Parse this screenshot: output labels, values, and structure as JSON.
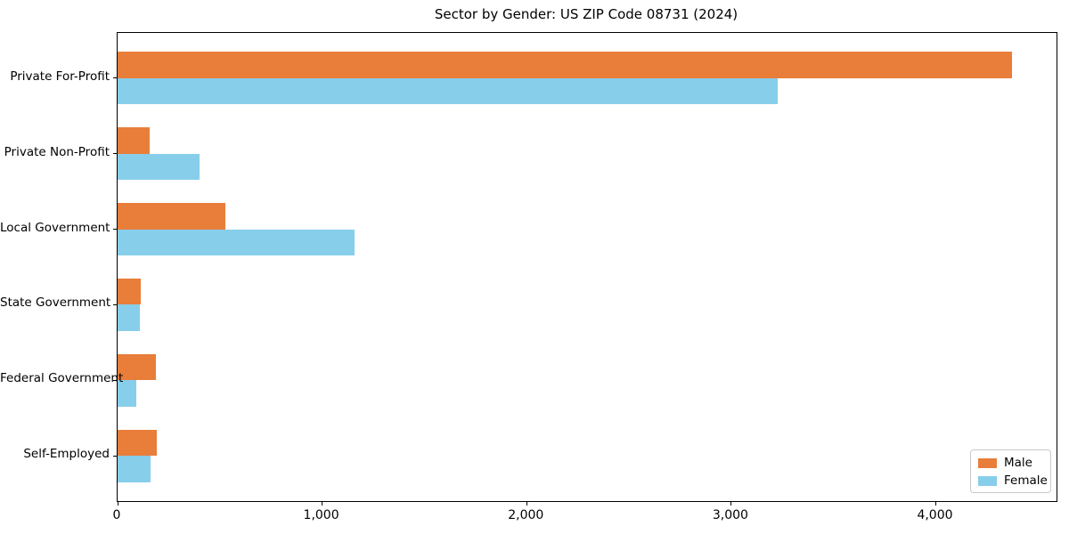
{
  "chart_data": {
    "type": "bar",
    "orientation": "horizontal",
    "title": "Sector by Gender: US ZIP Code 08731 (2024)",
    "categories": [
      "Private For-Profit",
      "Private Non-Profit",
      "Local Government",
      "State Government",
      "Federal Government",
      "Self-Employed"
    ],
    "series": [
      {
        "name": "Male",
        "color": "#e87e3a",
        "values": [
          4370,
          155,
          525,
          115,
          185,
          190
        ]
      },
      {
        "name": "Female",
        "color": "#87ceeb",
        "values": [
          3225,
          400,
          1160,
          110,
          90,
          160
        ]
      }
    ],
    "xlabel": "",
    "ylabel": "",
    "xlim": [
      0,
      4590
    ],
    "x_ticks": [
      0,
      1000,
      2000,
      3000,
      4000
    ],
    "x_tick_labels": [
      "0",
      "1,000",
      "2,000",
      "3,000",
      "4,000"
    ],
    "grid": false,
    "legend_position": "lower right",
    "background_color": "#ffffff",
    "axis_color": "#000000"
  }
}
